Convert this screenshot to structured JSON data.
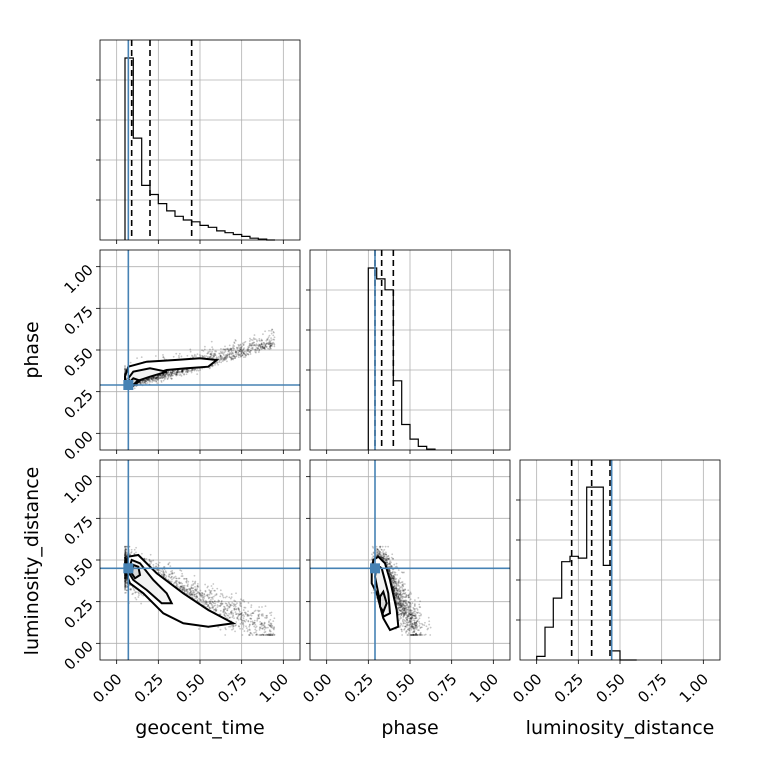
{
  "chart_data": {
    "type": "corner",
    "parameters": [
      "geocent_time",
      "phase",
      "luminosity_distance"
    ],
    "axis_labels": {
      "x": [
        "geocent_time",
        "phase",
        "luminosity_distance"
      ],
      "y": [
        "phase",
        "luminosity_distance"
      ]
    },
    "tick_values": [
      0.0,
      0.25,
      0.5,
      0.75,
      1.0
    ],
    "tick_labels": [
      "0.00",
      "0.25",
      "0.50",
      "0.75",
      "1.00"
    ],
    "xlim": [
      -0.1,
      1.1
    ],
    "ylim": [
      -0.1,
      1.1
    ],
    "grid": true,
    "truths": {
      "geocent_time": 0.07,
      "phase": 0.29,
      "luminosity_distance": 0.45
    },
    "quantiles": {
      "geocent_time": [
        0.09,
        0.2,
        0.45
      ],
      "phase": [
        0.29,
        0.33,
        0.4
      ],
      "luminosity_distance": [
        0.21,
        0.33,
        0.44
      ]
    },
    "histograms": {
      "geocent_time": {
        "bin_edges": [
          0.05,
          0.1,
          0.15,
          0.2,
          0.25,
          0.3,
          0.35,
          0.4,
          0.45,
          0.5,
          0.55,
          0.6,
          0.65,
          0.7,
          0.75,
          0.8,
          0.85,
          0.9,
          0.95
        ],
        "counts": [
          1.0,
          0.56,
          0.3,
          0.25,
          0.2,
          0.16,
          0.13,
          0.11,
          0.1,
          0.08,
          0.07,
          0.05,
          0.04,
          0.03,
          0.02,
          0.01,
          0.005,
          0.0
        ]
      },
      "phase": {
        "bin_edges": [
          0.25,
          0.275,
          0.3,
          0.325,
          0.35,
          0.375,
          0.4,
          0.425,
          0.45,
          0.475,
          0.5,
          0.525,
          0.55,
          0.575,
          0.6,
          0.625,
          0.65
        ],
        "counts": [
          1.0,
          1.0,
          0.94,
          0.94,
          0.88,
          0.88,
          0.38,
          0.38,
          0.14,
          0.14,
          0.06,
          0.06,
          0.02,
          0.02,
          0.005,
          0.005
        ]
      },
      "luminosity_distance": {
        "bin_edges": [
          0.0,
          0.05,
          0.1,
          0.15,
          0.2,
          0.25,
          0.3,
          0.35,
          0.4,
          0.45,
          0.5,
          0.55,
          0.6
        ],
        "counts": [
          0.02,
          0.18,
          0.34,
          0.54,
          0.57,
          0.56,
          0.95,
          0.95,
          0.52,
          0.05,
          0.0,
          0.0
        ]
      }
    },
    "posterior_samples_2d": {
      "phase_vs_geocent_time": {
        "trend": "positive",
        "x_range": [
          0.05,
          0.95
        ],
        "y_range": [
          0.28,
          0.65
        ],
        "density_peak": [
          0.09,
          0.3
        ]
      },
      "luminosity_distance_vs_geocent_time": {
        "trend": "negative",
        "x_range": [
          0.05,
          0.95
        ],
        "y_range": [
          0.05,
          0.58
        ],
        "density_peak": [
          0.1,
          0.45
        ]
      },
      "luminosity_distance_vs_phase": {
        "trend": "vertical",
        "x_range": [
          0.25,
          0.62
        ],
        "y_range": [
          0.08,
          0.58
        ],
        "density_peak": [
          0.33,
          0.25
        ]
      }
    },
    "colors": {
      "truth": "#4682b4",
      "histogram": "#000000",
      "quantile": "#000000",
      "samples": "#000000",
      "grid": "#b0b0b0"
    }
  }
}
